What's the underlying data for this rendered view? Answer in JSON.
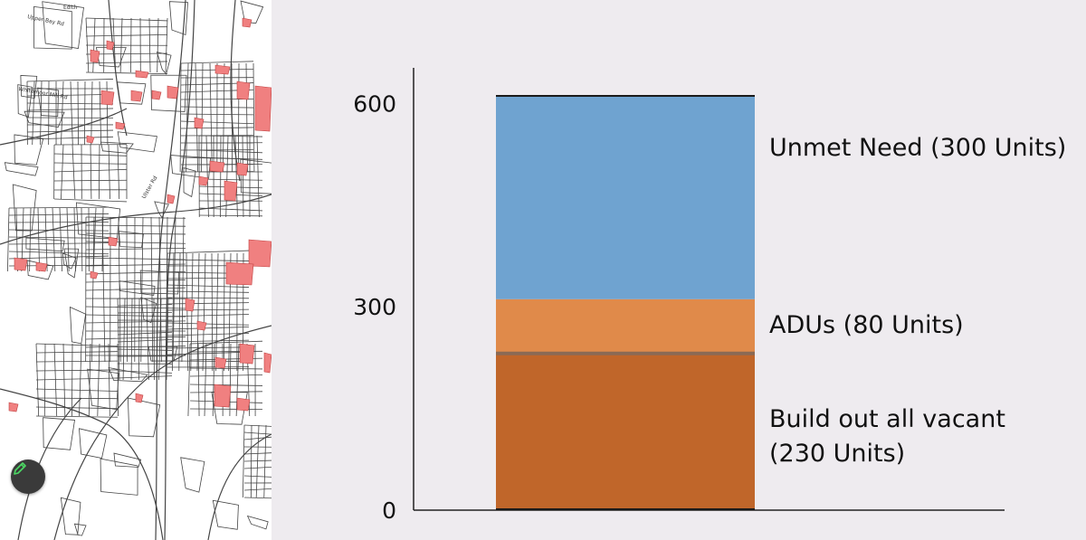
{
  "map": {
    "street_labels": [
      "Upper Bay Rd",
      "Edith",
      "Whitemoor Mill Rd",
      "Ulster Rd"
    ],
    "parcel_color": "#f08080",
    "street_color": "#444444"
  },
  "tools": {
    "pencil_icon": "pencil-icon",
    "pencil_color": "#4cd964"
  },
  "chart_data": {
    "type": "bar",
    "stacked": true,
    "categories": [
      ""
    ],
    "series": [
      {
        "name": "Build out all vacant (230 Units)",
        "label_lines": [
          "Build out all vacant",
          "(230 Units)"
        ],
        "values": [
          230
        ],
        "color": "#c0662a"
      },
      {
        "name": "ADUs (80 Units)",
        "label_lines": [
          "ADUs (80 Units)"
        ],
        "values": [
          80
        ],
        "color": "#e08a4a"
      },
      {
        "name": "Unmet Need (300 Units)",
        "label_lines": [
          "Unmet Need (300 Units)"
        ],
        "values": [
          300
        ],
        "color": "#6fa3d0"
      }
    ],
    "yticks": [
      0,
      300,
      600
    ],
    "ytick_labels": [
      "0",
      "300",
      "600"
    ],
    "ylim": [
      0,
      630
    ],
    "title": "",
    "xlabel": "",
    "ylabel": "",
    "grid": false,
    "legend": "inline-right"
  }
}
